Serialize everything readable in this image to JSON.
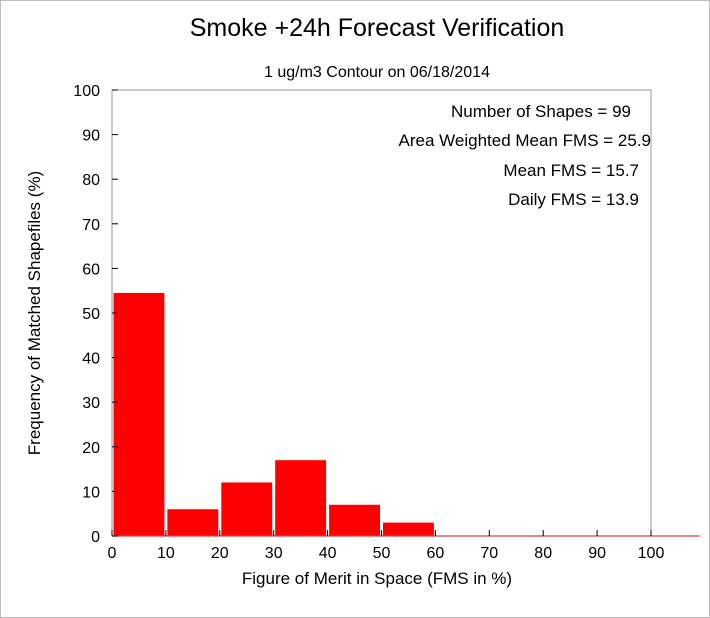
{
  "chart_data": {
    "type": "bar",
    "title": "Smoke +24h Forecast Verification",
    "subtitle": "1 ug/m3 Contour on 06/18/2014",
    "xlabel": "Figure of Merit in Space (FMS in %)",
    "ylabel": "Frequency of Matched Shapefiles (%)",
    "xlim": [
      0,
      100
    ],
    "ylim": [
      0,
      100
    ],
    "x_ticks": [
      "0",
      "10",
      "20",
      "30",
      "40",
      "50",
      "60",
      "70",
      "80",
      "90",
      "100"
    ],
    "y_ticks": [
      "0",
      "10",
      "20",
      "30",
      "40",
      "50",
      "60",
      "70",
      "80",
      "90",
      "100"
    ],
    "bins": [
      [
        0,
        10
      ],
      [
        10,
        20
      ],
      [
        20,
        30
      ],
      [
        30,
        40
      ],
      [
        40,
        50
      ],
      [
        50,
        60
      ],
      [
        60,
        70
      ],
      [
        70,
        80
      ],
      [
        80,
        90
      ],
      [
        90,
        100
      ]
    ],
    "values": [
      54.5,
      6,
      12,
      17,
      7,
      3,
      0,
      0,
      0,
      0
    ],
    "bar_color": "#ff0000",
    "grid": false,
    "annotations": [
      "Number of Shapes = 99",
      "Area Weighted Mean FMS = 25.9",
      "Mean FMS = 15.7",
      "Daily FMS = 13.9"
    ]
  }
}
